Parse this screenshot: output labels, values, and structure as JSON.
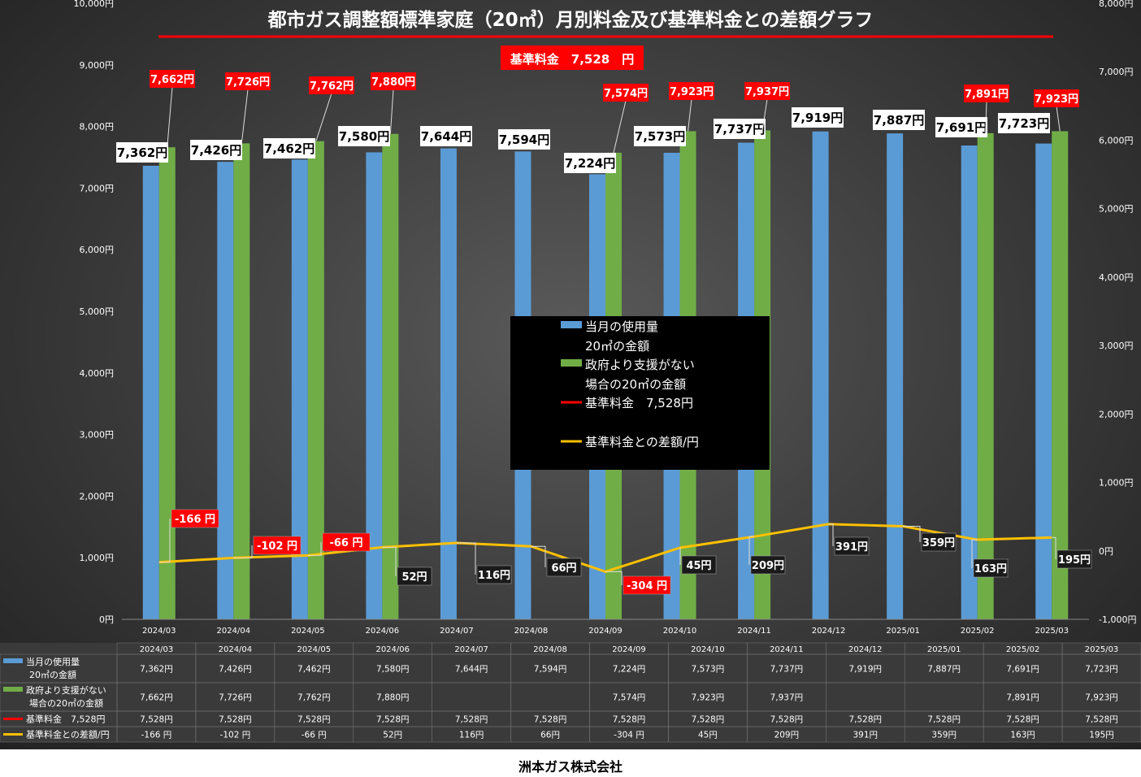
{
  "chart_data": {
    "type": "bar",
    "title": "都市ガス調整額標準家庭（20㎥）月別料金及び基準料金との差額グラフ",
    "base_label": "基準料金　7,528　円",
    "categories": [
      "2024/03",
      "2024/04",
      "2024/05",
      "2024/06",
      "2024/07",
      "2024/08",
      "2024/09",
      "2024/10",
      "2024/11",
      "2024/12",
      "2025/01",
      "2025/02",
      "2025/03"
    ],
    "left_axis": {
      "min": 0,
      "max": 10000,
      "ticks": [
        "0円",
        "1,000円",
        "2,000円",
        "3,000円",
        "4,000円",
        "5,000円",
        "6,000円",
        "7,000円",
        "8,000円",
        "9,000円",
        "10,000円"
      ]
    },
    "right_axis": {
      "min": -1000,
      "max": 8000,
      "ticks": [
        "-1,000円",
        "0円",
        "1,000円",
        "2,000円",
        "3,000円",
        "4,000円",
        "5,000円",
        "6,000円",
        "7,000円",
        "8,000円"
      ]
    },
    "series": [
      {
        "name": "当月の使用量20㎥の金額",
        "legend_lines": [
          "当月の使用量",
          "20㎥の金額"
        ],
        "table_lines": [
          "当月の使用量",
          "20㎥の金額"
        ],
        "color": "#5b9bd5",
        "values": [
          7362,
          7426,
          7462,
          7580,
          7644,
          7594,
          7224,
          7573,
          7737,
          7919,
          7887,
          7691,
          7723
        ],
        "labels": [
          "7,362円",
          "7,426円",
          "7,462円",
          "7,580円",
          "7,644円",
          "7,594円",
          "7,224円",
          "7,573円",
          "7,737円",
          "7,919円",
          "7,887円",
          "7,691円",
          "7,723円"
        ]
      },
      {
        "name": "政府より支援がない場合の20㎥の金額",
        "legend_lines": [
          "政府より支援がない",
          "場合の20㎥の金額"
        ],
        "table_lines": [
          "政府より支援がない",
          "場合の20㎥の金額"
        ],
        "color": "#70ad47",
        "values": [
          7662,
          7726,
          7762,
          7880,
          null,
          null,
          7574,
          7923,
          7937,
          null,
          null,
          7891,
          7923
        ],
        "labels": [
          "7,662円",
          "7,726円",
          "7,762円",
          "7,880円",
          "",
          "",
          "7,574円",
          "7,923円",
          "7,937円",
          "",
          "",
          "7,891円",
          "7,923円"
        ]
      },
      {
        "name": "基準料金　7,528円",
        "legend_lines": [
          "基準料金　7,528円"
        ],
        "table_lines": [
          "基準料金　7,528円"
        ],
        "color": "#ff0000",
        "values": [
          7528,
          7528,
          7528,
          7528,
          7528,
          7528,
          7528,
          7528,
          7528,
          7528,
          7528,
          7528,
          7528
        ],
        "labels": [
          "7,528円",
          "7,528円",
          "7,528円",
          "7,528円",
          "7,528円",
          "7,528円",
          "7,528円",
          "7,528円",
          "7,528円",
          "7,528円",
          "7,528円",
          "7,528円",
          "7,528円"
        ]
      },
      {
        "name": "基準料金との差額/円",
        "legend_lines": [
          "",
          "基準料金との差額/円"
        ],
        "table_lines": [
          "基準料金との差額/円"
        ],
        "color": "#ffc000",
        "values": [
          -166,
          -102,
          -66,
          52,
          116,
          66,
          -304,
          45,
          209,
          391,
          359,
          163,
          195
        ],
        "labels": [
          "-166 円",
          "-102 円",
          "-66 円",
          "52円",
          "116円",
          "66円",
          "-304 円",
          "45円",
          "209円",
          "391円",
          "359円",
          "163円",
          "195円"
        ],
        "table_labels": [
          "-166 円",
          "-102 円",
          "-66 円",
          "52円",
          "116円",
          "66円",
          "-304 円",
          "45円",
          "209円",
          "391円",
          "359円",
          "163円",
          "195円"
        ]
      }
    ],
    "legend_position": "center",
    "grid": false
  },
  "company": "洲本ガス株式会社",
  "colors": {
    "title_underline": "#ff0000",
    "negative_label_bg": "#ff0000",
    "label_bg_light": "#ffffff",
    "label_bg_dark": "#1a1a1a"
  }
}
